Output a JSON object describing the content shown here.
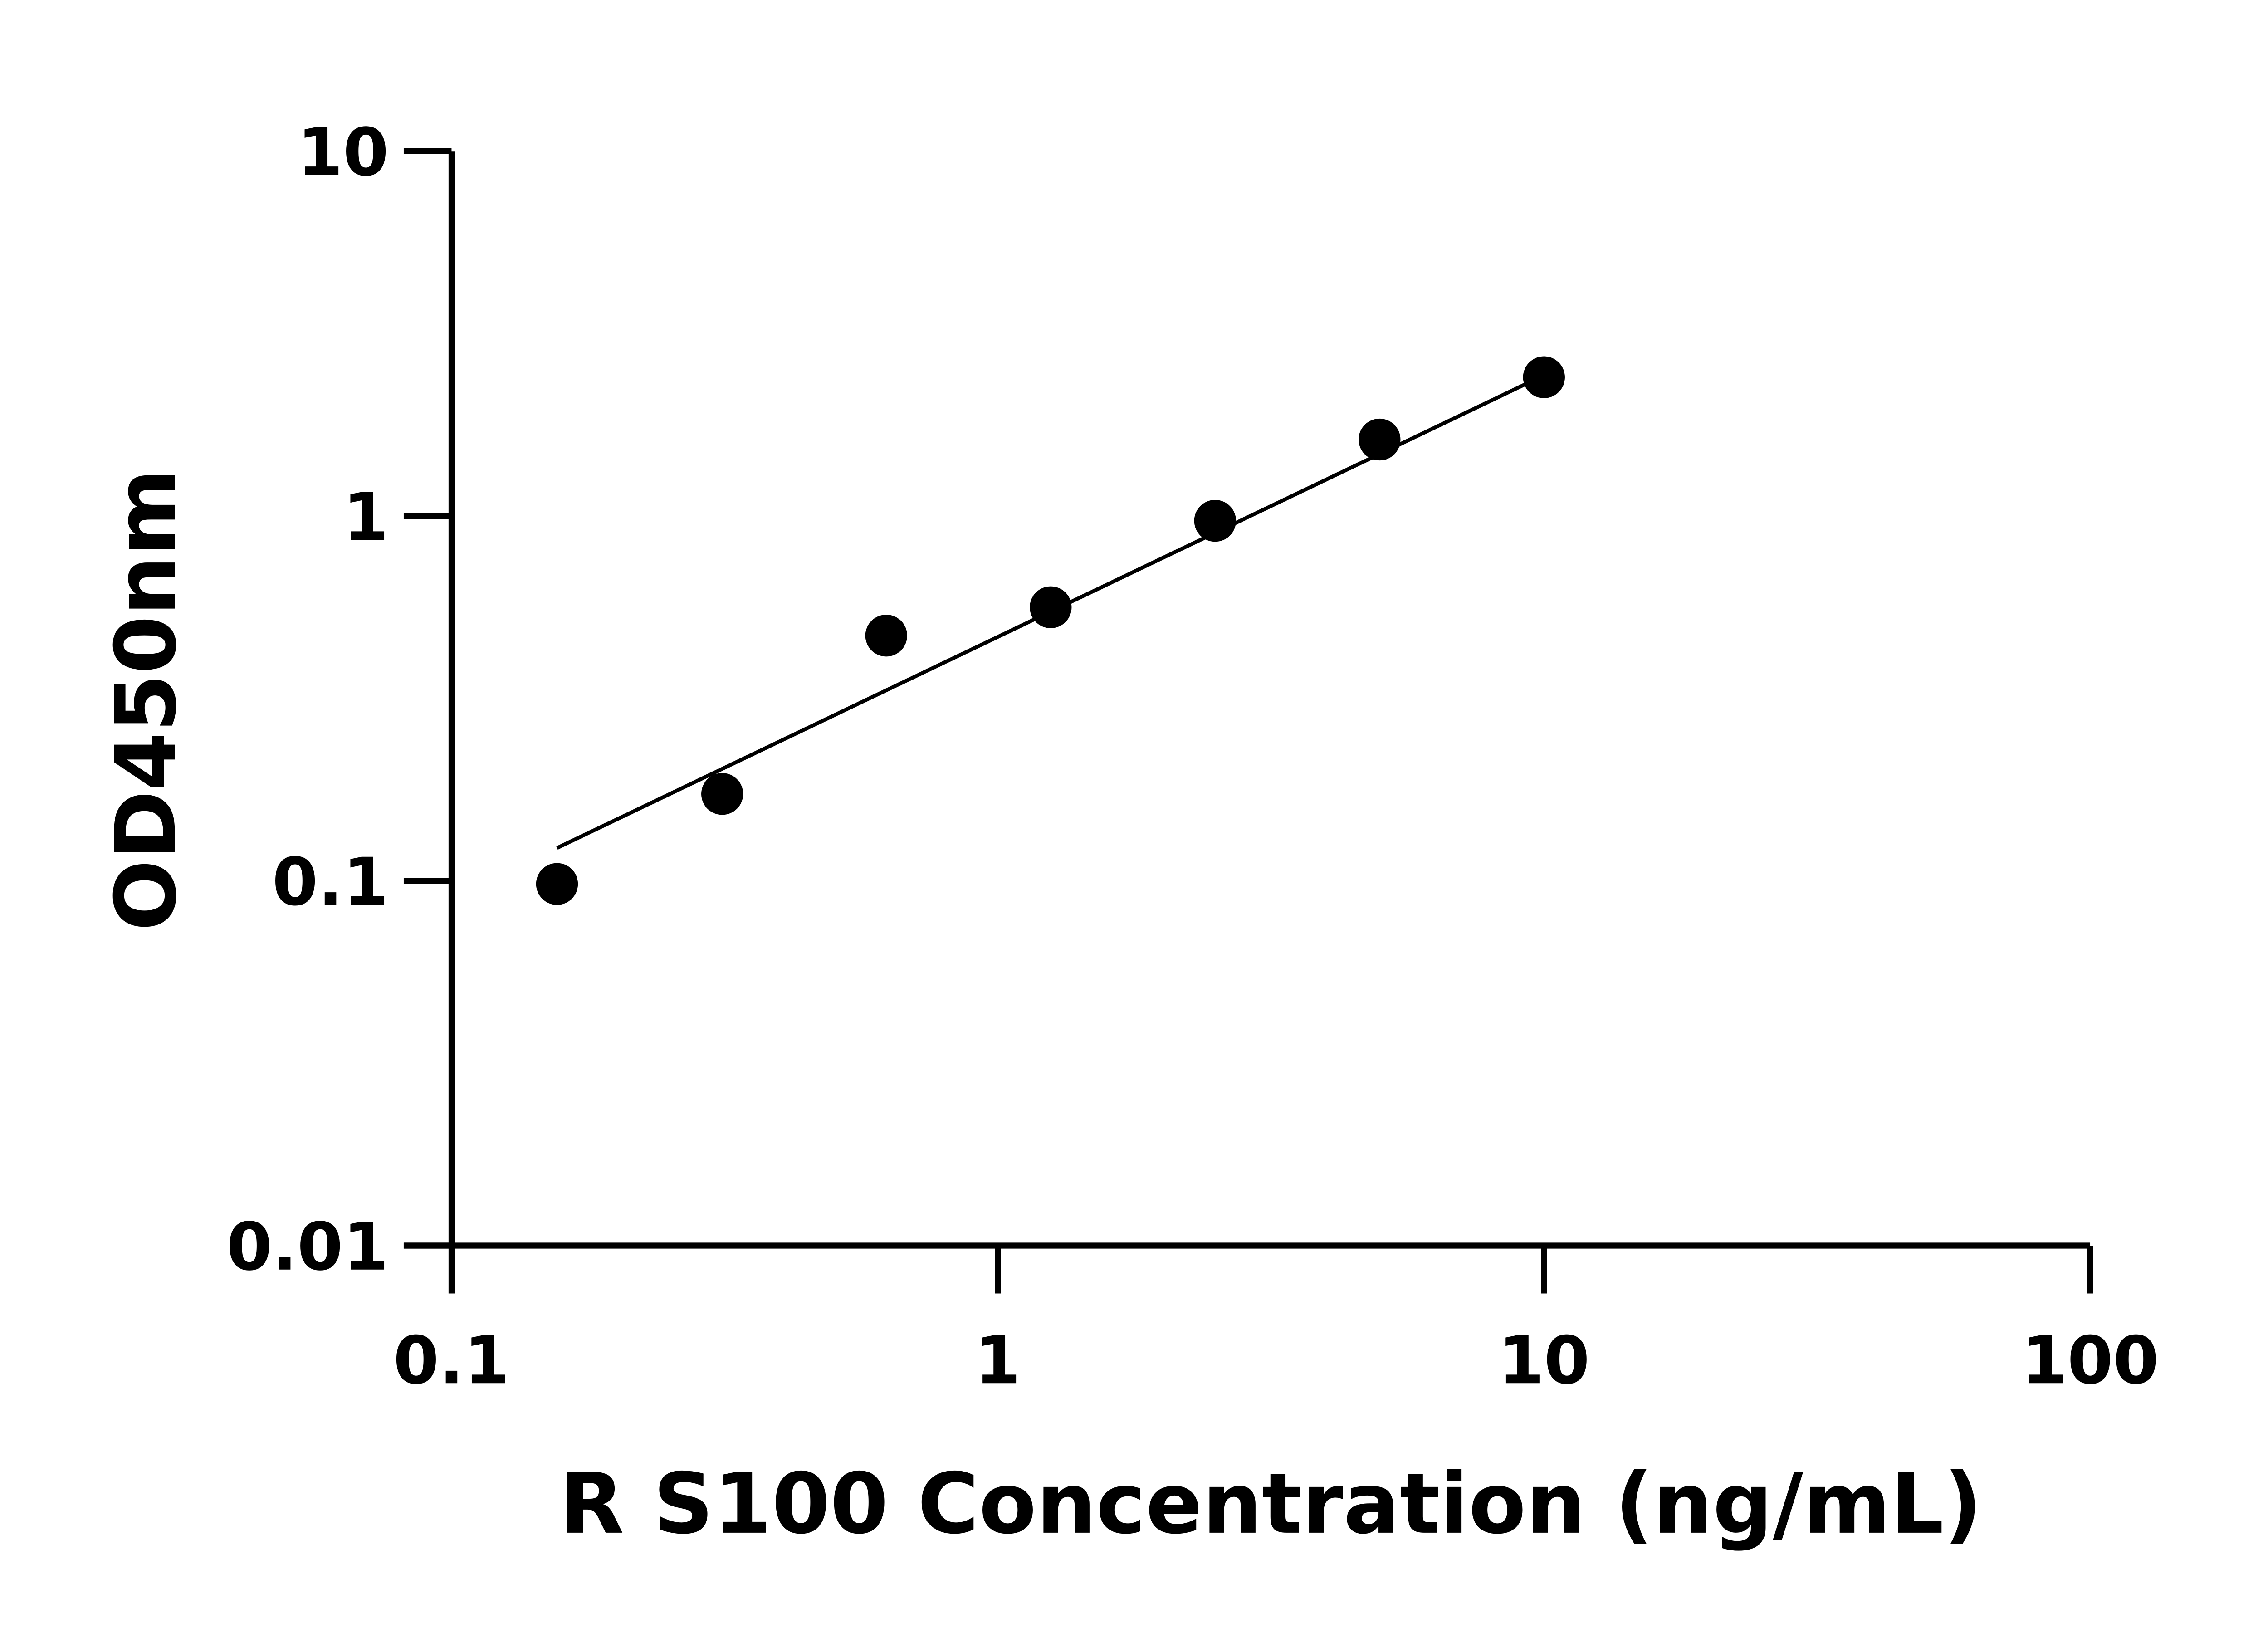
{
  "chart_data": {
    "type": "scatter",
    "title": "",
    "xlabel": "R S100 Concentration (ng/mL)",
    "ylabel": "OD450nm",
    "xscale": "log",
    "yscale": "log",
    "xlim": [
      0.1,
      100
    ],
    "ylim": [
      0.01,
      10
    ],
    "xticks": [
      0.1,
      1,
      10,
      100
    ],
    "xtick_labels": [
      "0.1",
      "1",
      "10",
      "100"
    ],
    "yticks": [
      0.01,
      0.1,
      1,
      10
    ],
    "ytick_labels": [
      "0.01",
      "0.1",
      "1",
      "10"
    ],
    "grid": false,
    "points": {
      "x": [
        0.156,
        0.313,
        0.625,
        1.25,
        2.5,
        5,
        10
      ],
      "y": [
        0.098,
        0.173,
        0.47,
        0.562,
        0.97,
        1.62,
        2.4
      ]
    },
    "fit_line": {
      "x": [
        0.156,
        10
      ],
      "y": [
        0.123,
        2.43
      ]
    },
    "marker_color": "#000000",
    "line_color": "#000000"
  }
}
